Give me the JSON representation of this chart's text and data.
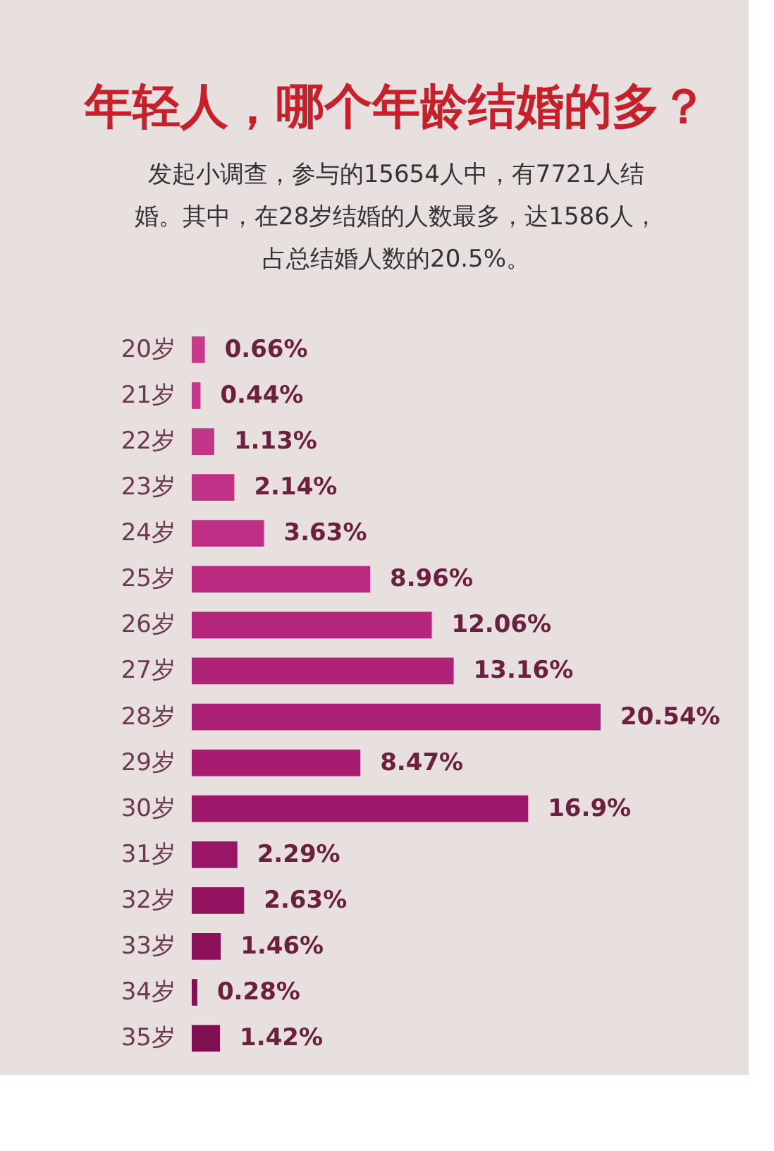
{
  "chart_data": {
    "type": "bar",
    "orientation": "horizontal",
    "title": "年轻人，哪个年龄结婚的多？",
    "subtitle": "发起小调查，参与的15654人中，有7721人结婚。其中，在28岁结婚的人数最多，达1586人，占总结婚人数的20.5%。",
    "categories": [
      "20岁",
      "21岁",
      "22岁",
      "23岁",
      "24岁",
      "25岁",
      "26岁",
      "27岁",
      "28岁",
      "29岁",
      "30岁",
      "31岁",
      "32岁",
      "33岁",
      "34岁",
      "35岁"
    ],
    "values": [
      0.66,
      0.44,
      1.13,
      2.14,
      3.63,
      8.96,
      12.06,
      13.16,
      20.54,
      8.47,
      16.9,
      2.29,
      2.63,
      1.46,
      0.28,
      1.42
    ],
    "value_labels": [
      "0.66%",
      "0.44%",
      "1.13%",
      "2.14%",
      "3.63%",
      "8.96%",
      "12.06%",
      "13.16%",
      "20.54%",
      "8.47%",
      "16.9%",
      "2.29%",
      "2.63%",
      "1.46%",
      "0.28%",
      "1.42%"
    ],
    "colors": [
      "#c83a8c",
      "#c5378a",
      "#c33589",
      "#c03287",
      "#bd2f85",
      "#b92a80",
      "#b3267c",
      "#ae2278",
      "#a81f74",
      "#a51c70",
      "#9e196b",
      "#981665",
      "#921460",
      "#8c115b",
      "#861056",
      "#800e52"
    ]
  }
}
